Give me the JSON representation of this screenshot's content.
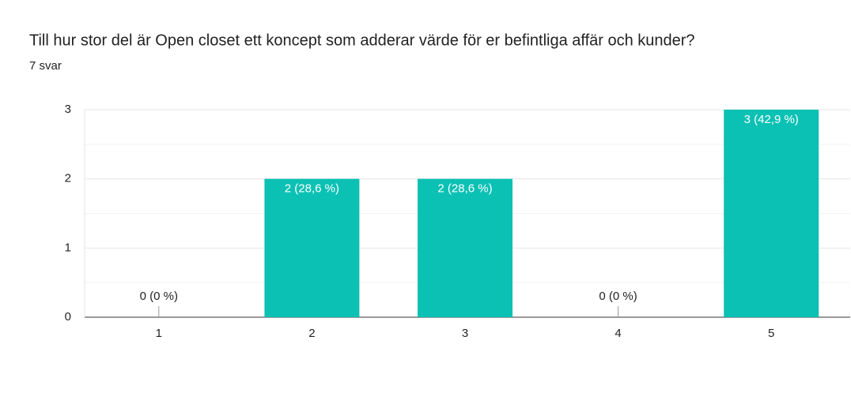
{
  "chart_data": {
    "type": "bar",
    "title": "Till hur stor del är Open closet ett koncept som adderar värde för er befintliga affär och kunder?",
    "subtitle": "7 svar",
    "categories": [
      "1",
      "2",
      "3",
      "4",
      "5"
    ],
    "values": [
      0,
      2,
      2,
      0,
      3
    ],
    "value_labels": [
      "0 (0 %)",
      "2 (28,6 %)",
      "2 (28,6 %)",
      "0 (0 %)",
      "3 (42,9 %)"
    ],
    "color": "#0bc1b4",
    "ylim": [
      0,
      3
    ],
    "yticks": [
      0,
      1,
      2,
      3
    ],
    "minor_yticks": [
      0.5,
      1.5,
      2.5
    ],
    "grid": true
  }
}
